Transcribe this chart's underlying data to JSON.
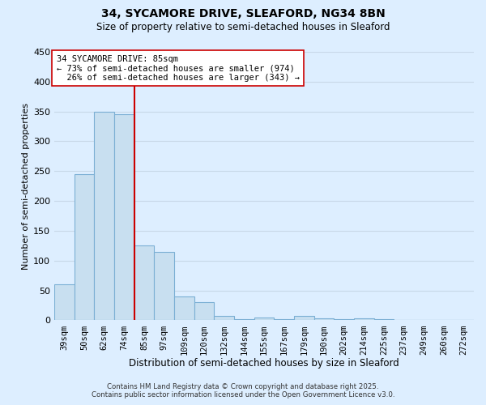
{
  "title_line1": "34, SYCAMORE DRIVE, SLEAFORD, NG34 8BN",
  "title_line2": "Size of property relative to semi-detached houses in Sleaford",
  "xlabel": "Distribution of semi-detached houses by size in Sleaford",
  "ylabel": "Number of semi-detached properties",
  "bar_labels": [
    "39sqm",
    "50sqm",
    "62sqm",
    "74sqm",
    "85sqm",
    "97sqm",
    "109sqm",
    "120sqm",
    "132sqm",
    "144sqm",
    "155sqm",
    "167sqm",
    "179sqm",
    "190sqm",
    "202sqm",
    "214sqm",
    "225sqm",
    "237sqm",
    "249sqm",
    "260sqm",
    "272sqm"
  ],
  "bar_values": [
    60,
    245,
    350,
    345,
    125,
    115,
    40,
    30,
    8,
    2,
    5,
    2,
    7,
    3,
    2,
    3,
    2,
    1,
    1,
    1,
    1
  ],
  "bar_color": "#c8dff0",
  "bar_edge_color": "#7bafd4",
  "ref_line_index": 4,
  "pct_smaller": 73,
  "count_smaller": 974,
  "pct_larger": 26,
  "count_larger": 343,
  "ylim": [
    0,
    450
  ],
  "yticks": [
    0,
    50,
    100,
    150,
    200,
    250,
    300,
    350,
    400,
    450
  ],
  "background_color": "#ddeeff",
  "plot_background_color": "#ddeeff",
  "grid_color": "#c8d8e8",
  "ref_line_color": "#cc0000",
  "footer_line1": "Contains HM Land Registry data © Crown copyright and database right 2025.",
  "footer_line2": "Contains public sector information licensed under the Open Government Licence v3.0."
}
